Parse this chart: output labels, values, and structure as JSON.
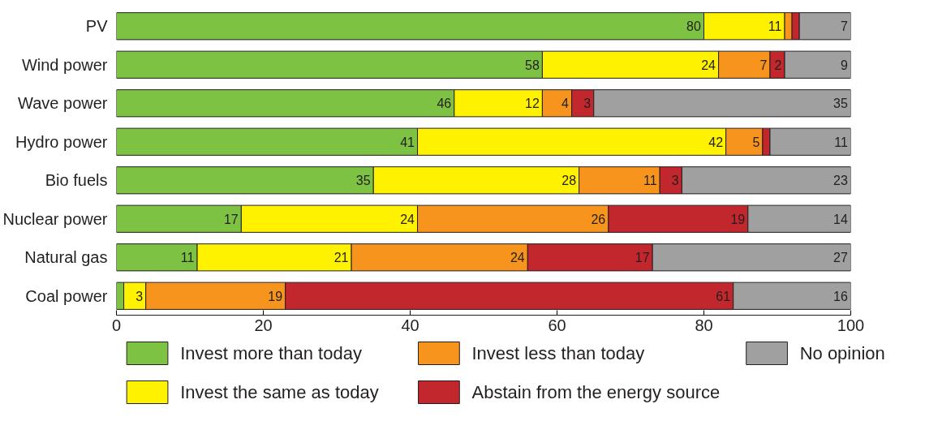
{
  "chart_data": {
    "type": "bar",
    "orientation": "horizontal",
    "stacked": true,
    "categories": [
      "PV",
      "Wind power",
      "Wave power",
      "Hydro power",
      "Bio fuels",
      "Nuclear power",
      "Natural gas",
      "Coal power"
    ],
    "series": [
      {
        "name": "Invest more than today",
        "color": "#7dc242",
        "values": [
          80,
          58,
          46,
          41,
          35,
          17,
          11,
          1
        ],
        "value_labels": [
          "80",
          "58",
          "46",
          "41",
          "35",
          "17",
          "11",
          null
        ]
      },
      {
        "name": "Invest the same as today",
        "color": "#fff200",
        "values": [
          11,
          24,
          12,
          42,
          28,
          24,
          21,
          3
        ],
        "value_labels": [
          "11",
          "24",
          "12",
          "42",
          "28",
          "24",
          "21",
          "3"
        ]
      },
      {
        "name": "Invest less than today",
        "color": "#f7941d",
        "values": [
          1,
          7,
          4,
          5,
          11,
          26,
          24,
          19
        ],
        "value_labels": [
          null,
          "7",
          "4",
          "5",
          "11",
          "26",
          "24",
          "19"
        ]
      },
      {
        "name": "Abstain from the energy source",
        "color": "#c1272d",
        "values": [
          1,
          2,
          3,
          1,
          3,
          19,
          17,
          61
        ],
        "value_labels": [
          null,
          "2",
          "3",
          null,
          "3",
          "19",
          "17",
          "61"
        ]
      },
      {
        "name": "No opinion",
        "color": "#a0a0a0",
        "values": [
          7,
          9,
          35,
          11,
          23,
          14,
          27,
          16
        ],
        "value_labels": [
          "7",
          "9",
          "35",
          "11",
          "23",
          "14",
          "27",
          "16"
        ]
      }
    ],
    "xlim": [
      0,
      100
    ],
    "xticks": [
      0,
      20,
      40,
      60,
      80,
      100
    ],
    "grid": false,
    "legend": "bottom"
  }
}
